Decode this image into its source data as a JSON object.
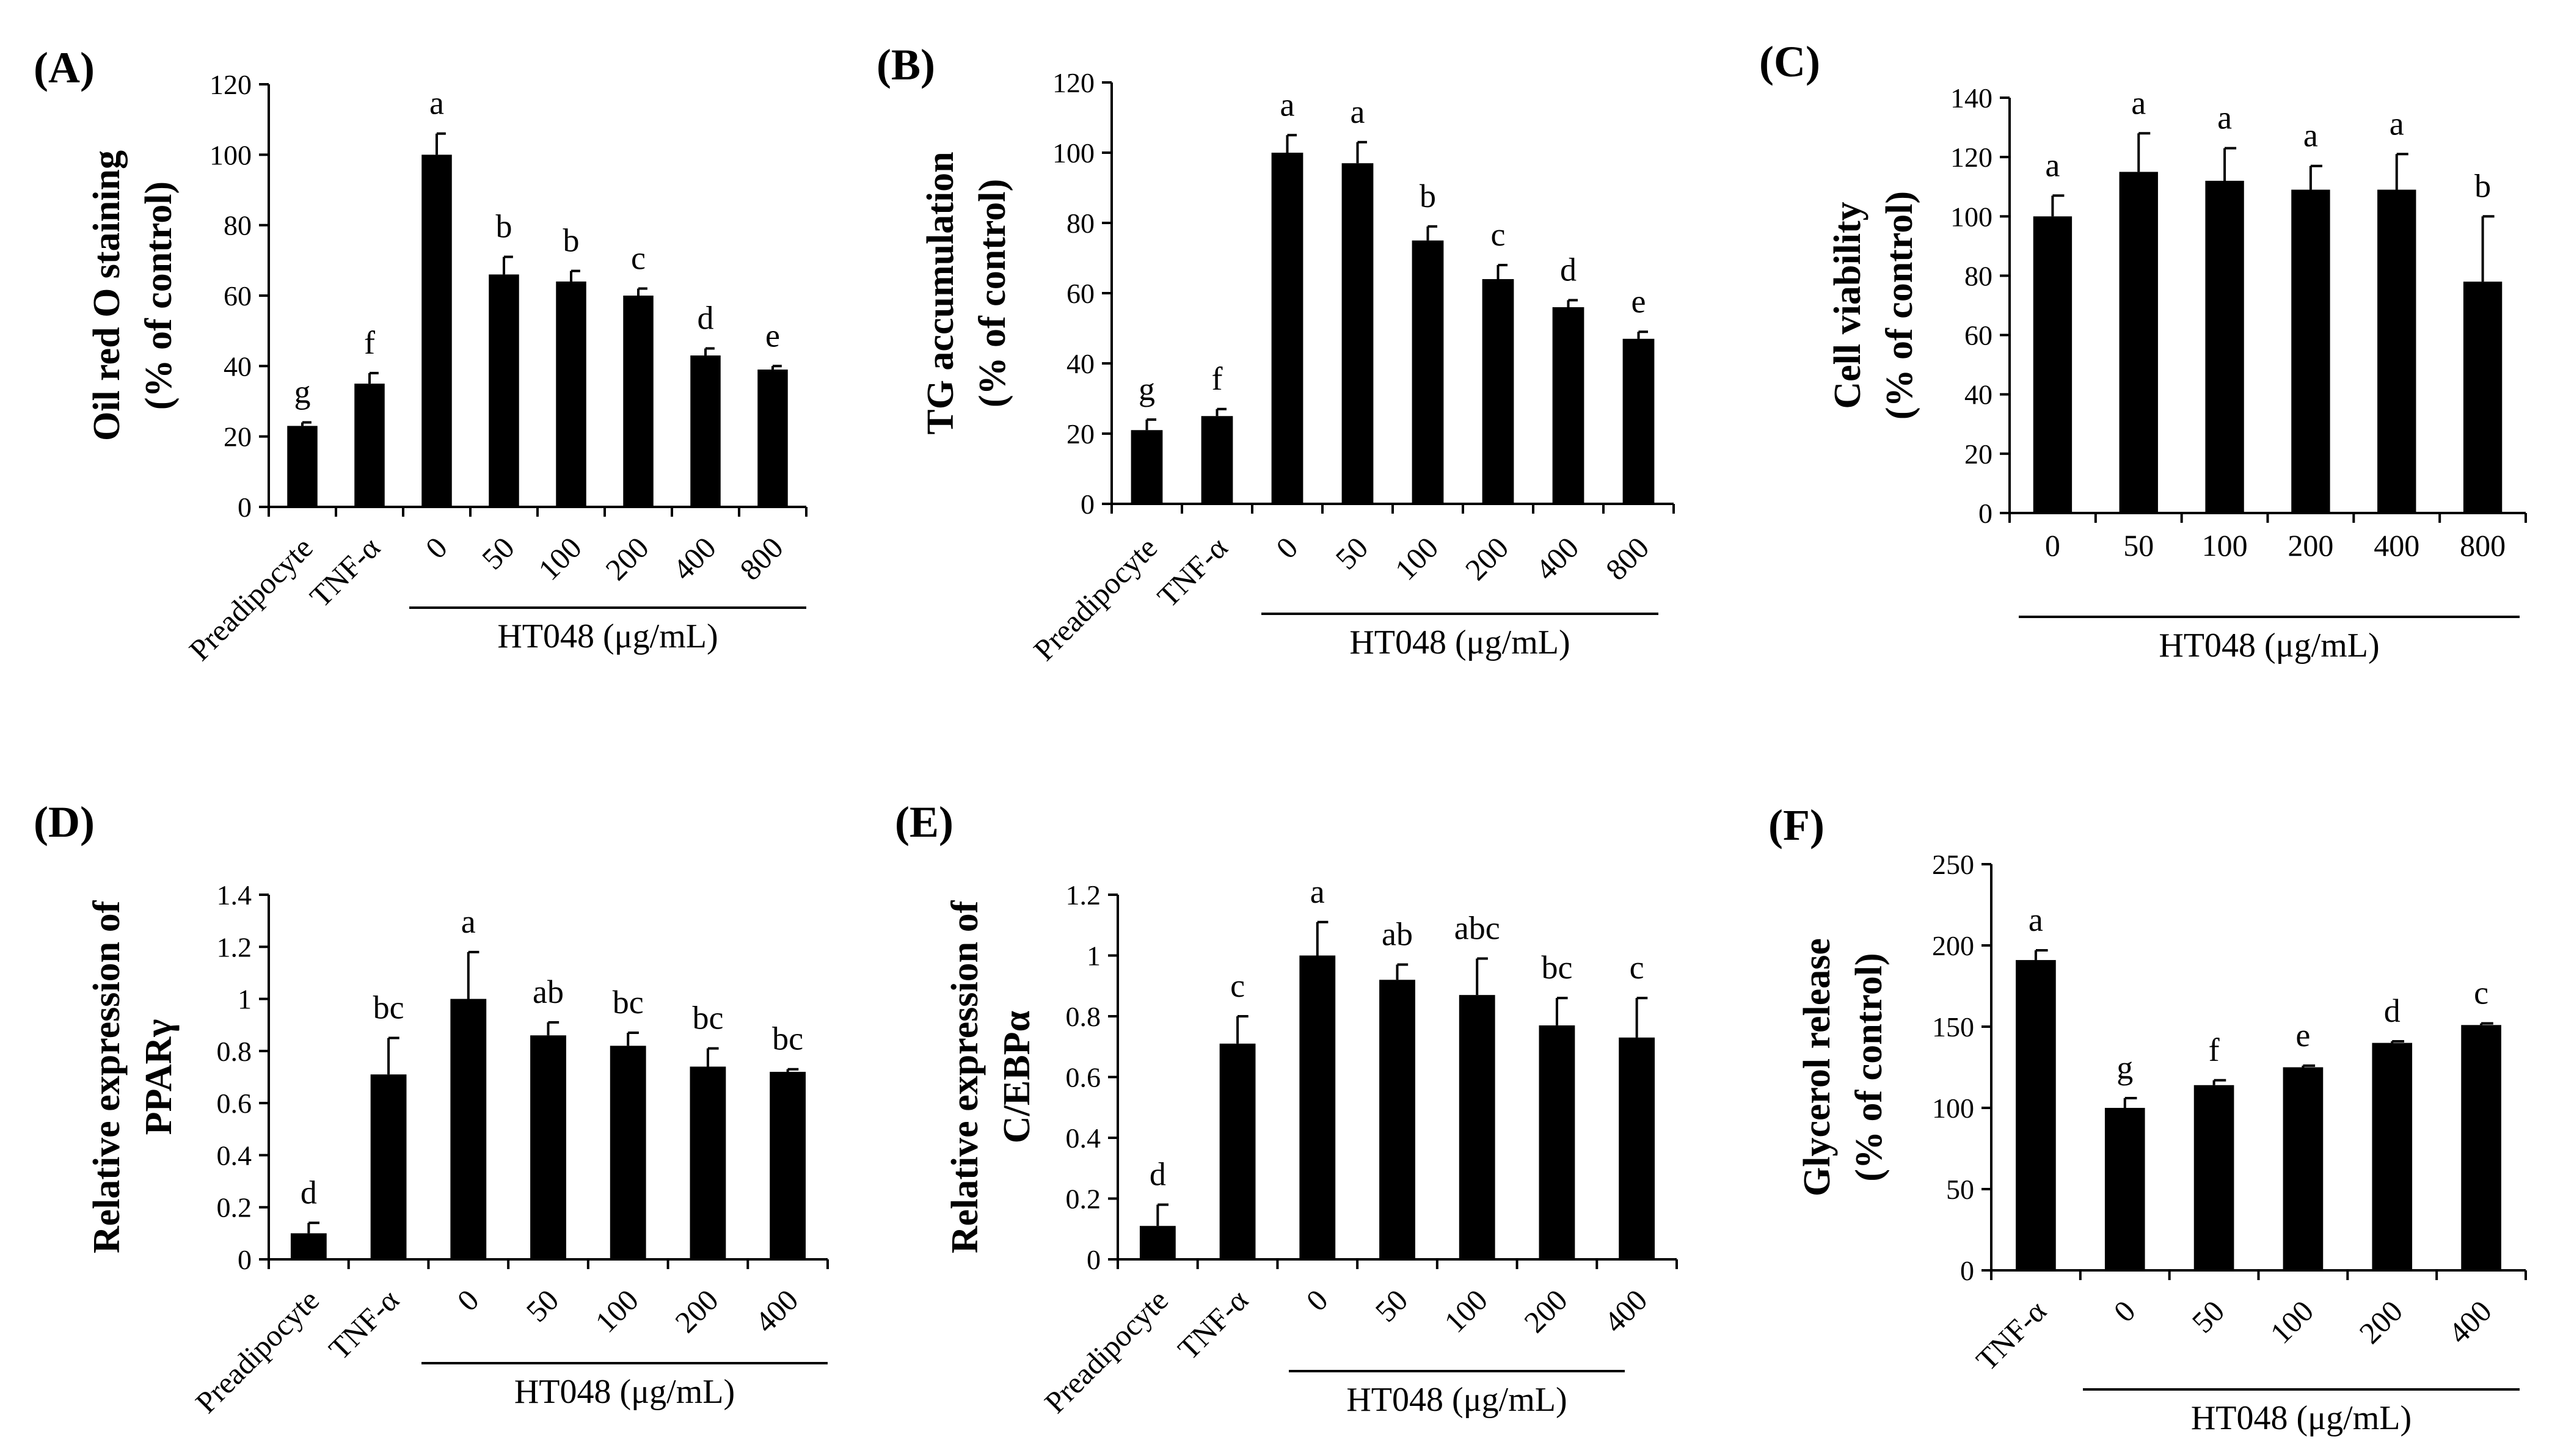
{
  "figure": {
    "background": "#ffffff",
    "bar_color": "#000000"
  },
  "chart_data": [
    {
      "id": "A",
      "panel_label": "(A)",
      "type": "bar",
      "ylabel_lines": [
        "Oil red O staining",
        "(% of control)"
      ],
      "ylim": [
        0,
        120
      ],
      "yticks": [
        0,
        20,
        40,
        60,
        80,
        100,
        120
      ],
      "categories": [
        "Preadipocyte",
        "TNF-α",
        "0",
        "50",
        "100",
        "200",
        "400",
        "800"
      ],
      "values": [
        23,
        35,
        100,
        66,
        64,
        60,
        43,
        39
      ],
      "errors": [
        1,
        3,
        6,
        5,
        3,
        2,
        2,
        1
      ],
      "letters": [
        "g",
        "f",
        "a",
        "b",
        "b",
        "c",
        "d",
        "e"
      ],
      "rotate_labels": true,
      "group_start_index": 2,
      "group_label": "HT048 (μg/mL)"
    },
    {
      "id": "B",
      "panel_label": "(B)",
      "type": "bar",
      "ylabel_lines": [
        "TG accumulation",
        "(% of control)"
      ],
      "ylim": [
        0,
        120
      ],
      "yticks": [
        0,
        20,
        40,
        60,
        80,
        100,
        120
      ],
      "categories": [
        "Preadipocyte",
        "TNF-α",
        "0",
        "50",
        "100",
        "200",
        "400",
        "800"
      ],
      "values": [
        21,
        25,
        100,
        97,
        75,
        64,
        56,
        47
      ],
      "errors": [
        3,
        2,
        5,
        6,
        4,
        4,
        2,
        2
      ],
      "letters": [
        "g",
        "f",
        "a",
        "a",
        "b",
        "c",
        "d",
        "e"
      ],
      "rotate_labels": true,
      "group_start_index": 2,
      "group_label": "HT048 (μg/mL)"
    },
    {
      "id": "C",
      "panel_label": "(C)",
      "type": "bar",
      "ylabel_lines": [
        "Cell viability",
        "(% of control)"
      ],
      "ylim": [
        0,
        140
      ],
      "yticks": [
        0,
        20,
        40,
        60,
        80,
        100,
        120,
        140
      ],
      "categories": [
        "0",
        "50",
        "100",
        "200",
        "400",
        "800"
      ],
      "values": [
        100,
        115,
        112,
        109,
        109,
        78
      ],
      "errors": [
        7,
        13,
        11,
        8,
        12,
        22
      ],
      "letters": [
        "a",
        "a",
        "a",
        "a",
        "a",
        "b"
      ],
      "rotate_labels": false,
      "group_start_index": 0,
      "group_label": "HT048 (μg/mL)"
    },
    {
      "id": "D",
      "panel_label": "(D)",
      "type": "bar",
      "ylabel_lines": [
        "Relative expression of",
        "PPARγ"
      ],
      "ylim": [
        0,
        1.4
      ],
      "yticks": [
        0,
        0.2,
        0.4,
        0.6,
        0.8,
        1,
        1.2,
        1.4
      ],
      "categories": [
        "Preadipocyte",
        "TNF-α",
        "0",
        "50",
        "100",
        "200",
        "400"
      ],
      "values": [
        0.1,
        0.71,
        1.0,
        0.86,
        0.82,
        0.74,
        0.72
      ],
      "errors": [
        0.04,
        0.14,
        0.18,
        0.05,
        0.05,
        0.07,
        0.01
      ],
      "letters": [
        "d",
        "bc",
        "a",
        "ab",
        "bc",
        "bc",
        "bc"
      ],
      "rotate_labels": true,
      "group_start_index": 2,
      "group_label": "HT048 (μg/mL)"
    },
    {
      "id": "E",
      "panel_label": "(E)",
      "type": "bar",
      "ylabel_lines": [
        "Relative expression of",
        "C/EBPα"
      ],
      "ylim": [
        0,
        1.2
      ],
      "yticks": [
        0,
        0.2,
        0.4,
        0.6,
        0.8,
        1,
        1.2
      ],
      "categories": [
        "Preadipocyte",
        "TNF-α",
        "0",
        "50",
        "100",
        "200",
        "400"
      ],
      "values": [
        0.11,
        0.71,
        1.0,
        0.92,
        0.87,
        0.77,
        0.73
      ],
      "errors": [
        0.07,
        0.09,
        0.11,
        0.05,
        0.12,
        0.09,
        0.13
      ],
      "letters": [
        "d",
        "c",
        "a",
        "ab",
        "abc",
        "bc",
        "c"
      ],
      "rotate_labels": true,
      "group_start_index": 2,
      "group_label": "HT048 (μg/mL)"
    },
    {
      "id": "F",
      "panel_label": "(F)",
      "type": "bar",
      "ylabel_lines": [
        "Glycerol release",
        "(% of control)"
      ],
      "ylim": [
        0,
        250
      ],
      "yticks": [
        0,
        50,
        100,
        150,
        200,
        250
      ],
      "categories": [
        "TNF-α",
        "0",
        "50",
        "100",
        "200",
        "400"
      ],
      "values": [
        191,
        100,
        114,
        125,
        140,
        151
      ],
      "errors": [
        6,
        6,
        3,
        1,
        1,
        1
      ],
      "letters": [
        "a",
        "g",
        "f",
        "e",
        "d",
        "c"
      ],
      "rotate_labels": true,
      "group_start_index": 1,
      "group_label": "HT048 (μg/mL)"
    }
  ]
}
